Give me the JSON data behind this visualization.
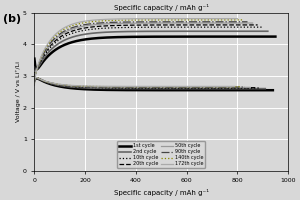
{
  "title_top": "Specific capacity / mAh g⁻¹",
  "xlabel": "Specific capacity / mAh g⁻¹",
  "ylabel": "Voltage / V vs Li⁺/Li",
  "panel_label": "(b)",
  "xlim": [
    0,
    1000
  ],
  "ylim": [
    0,
    5
  ],
  "yticks": [
    0,
    1,
    2,
    3,
    4,
    5
  ],
  "xticks": [
    0,
    200,
    400,
    600,
    800,
    1000
  ],
  "bg_color": "#d8d8d8",
  "cycles": [
    {
      "label": "1st cycle",
      "color": "#000000",
      "lw": 1.8,
      "ls": "-",
      "charge_cap": 950,
      "charge_v_end": 4.25,
      "discharge_cap": 940,
      "discharge_v_end": 2.55,
      "spike_up": 4.8,
      "spike_dn": 2.4
    },
    {
      "label": "2nd cycle",
      "color": "#666666",
      "lw": 1.2,
      "ls": "-",
      "charge_cap": 920,
      "charge_v_end": 4.42,
      "discharge_cap": 910,
      "discharge_v_end": 2.6,
      "spike_up": 4.7,
      "spike_dn": 2.45
    },
    {
      "label": "10th cycle",
      "color": "#000000",
      "lw": 0.9,
      "ls": ":",
      "charge_cap": 900,
      "charge_v_end": 4.55,
      "discharge_cap": 890,
      "discharge_v_end": 2.62,
      "spike_up": 4.65,
      "spike_dn": 2.5
    },
    {
      "label": "20th cycle",
      "color": "#000000",
      "lw": 0.9,
      "ls": "--",
      "charge_cap": 880,
      "charge_v_end": 4.62,
      "discharge_cap": 870,
      "discharge_v_end": 2.63,
      "spike_up": 4.62,
      "spike_dn": 2.52
    },
    {
      "label": "50th cycle",
      "color": "#999999",
      "lw": 0.9,
      "ls": "-",
      "charge_cap": 860,
      "charge_v_end": 4.68,
      "discharge_cap": 850,
      "discharge_v_end": 2.64,
      "spike_up": 4.6,
      "spike_dn": 2.55
    },
    {
      "label": "90th cycle",
      "color": "#444444",
      "lw": 0.9,
      "ls": "-.",
      "charge_cap": 840,
      "charge_v_end": 4.72,
      "discharge_cap": 830,
      "discharge_v_end": 2.65,
      "spike_up": 4.58,
      "spike_dn": 2.57
    },
    {
      "label": "140th cycle",
      "color": "#888800",
      "lw": 0.9,
      "ls": ":",
      "charge_cap": 820,
      "charge_v_end": 4.78,
      "discharge_cap": 810,
      "discharge_v_end": 2.66,
      "spike_up": 4.55,
      "spike_dn": 2.6
    },
    {
      "label": "172th cycle",
      "color": "#aaaaaa",
      "lw": 0.9,
      "ls": "-",
      "charge_cap": 800,
      "charge_v_end": 4.82,
      "discharge_cap": 790,
      "discharge_v_end": 2.67,
      "spike_up": 4.52,
      "spike_dn": 2.62
    }
  ],
  "legend_entries": [
    {
      "label": "1st cycle",
      "color": "#000000",
      "lw": 1.8,
      "ls": "-"
    },
    {
      "label": "2nd cycle",
      "color": "#666666",
      "lw": 1.2,
      "ls": "-"
    },
    {
      "label": "10th cycle",
      "color": "#000000",
      "lw": 0.9,
      "ls": ":"
    },
    {
      "label": "20th cycle",
      "color": "#000000",
      "lw": 0.9,
      "ls": "--"
    },
    {
      "label": "50th cycle",
      "color": "#999999",
      "lw": 0.9,
      "ls": "-"
    },
    {
      "label": "90th cycle",
      "color": "#444444",
      "lw": 0.9,
      "ls": "-."
    },
    {
      "label": "140th cycle",
      "color": "#888800",
      "lw": 0.9,
      "ls": ":"
    },
    {
      "label": "172th cycle",
      "color": "#aaaaaa",
      "lw": 0.9,
      "ls": "-"
    }
  ]
}
